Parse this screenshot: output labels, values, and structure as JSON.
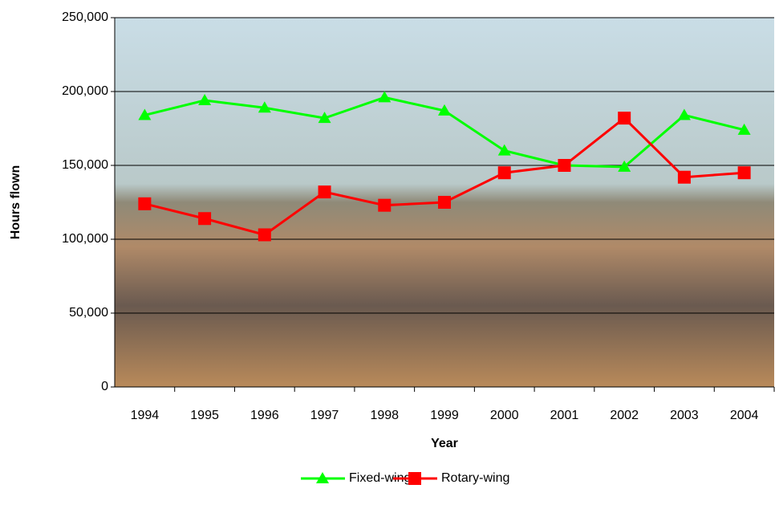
{
  "chart_data": {
    "type": "line",
    "x_label": "Year",
    "y_label": "Hours flown",
    "categories": [
      "1994",
      "1995",
      "1996",
      "1997",
      "1998",
      "1999",
      "2000",
      "2001",
      "2002",
      "2003",
      "2004"
    ],
    "series": [
      {
        "name": "Fixed-wing",
        "color": "#00ff00",
        "marker": "triangle",
        "values": [
          184000,
          194000,
          189000,
          182000,
          196000,
          187000,
          160000,
          150000,
          149000,
          184000,
          174000
        ]
      },
      {
        "name": "Rotary-wing",
        "color": "#ff0000",
        "marker": "square",
        "values": [
          124000,
          114000,
          103000,
          132000,
          123000,
          125000,
          145000,
          150000,
          182000,
          142000,
          145000
        ]
      }
    ],
    "ylim": [
      0,
      250000
    ],
    "yticks": [
      0,
      {
        "value": 50000,
        "label": "50,000"
      },
      {
        "value": 100000,
        "label": "100,000"
      },
      {
        "value": 150000,
        "label": "150,000"
      },
      {
        "value": 200000,
        "label": "200,000"
      },
      {
        "value": 250000,
        "label": "250,000"
      }
    ],
    "grid": true,
    "legend": "bottom"
  }
}
